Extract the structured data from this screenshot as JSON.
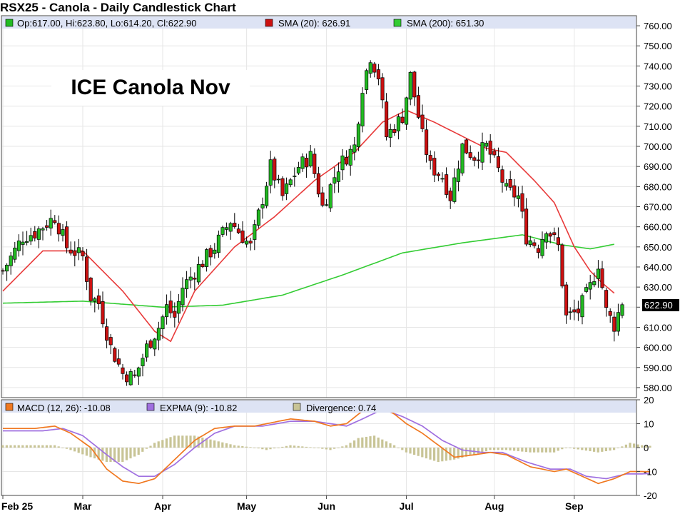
{
  "title": "RSX25 - Canola - Daily Candlestick Chart",
  "annotation": "ICE Canola Nov",
  "legend": {
    "ohlc": "Op:617.00, Hi:623.80, Lo:614.20, Cl:622.90",
    "sma20": "SMA (20): 626.91",
    "sma200": "SMA (200): 651.30",
    "macd": "MACD (12, 26): -10.08",
    "expma": "EXPMA (9): -10.82",
    "divergence": "Divergence: 0.74"
  },
  "last_price_label": "622.90",
  "colors": {
    "up": "#22bb22",
    "down": "#cc1111",
    "sma20": "#e83a3a",
    "sma200": "#33cc33",
    "macd": "#f07820",
    "expma": "#a070e0",
    "divergence": "#c8c496",
    "legend_bg": "#dde3f4"
  },
  "chart_data": [
    {
      "type": "candlestick",
      "title": "RSX25 - Canola - Daily Candlestick Chart",
      "ylim": [
        575,
        765
      ],
      "y_ticks": [
        "760.00",
        "750.00",
        "740.00",
        "730.00",
        "720.00",
        "710.00",
        "700.00",
        "690.00",
        "680.00",
        "670.00",
        "660.00",
        "650.00",
        "640.00",
        "630.00",
        "620.00",
        "610.00",
        "600.00",
        "590.00",
        "580.00"
      ],
      "y_tick_values": [
        760,
        750,
        740,
        730,
        720,
        710,
        700,
        690,
        680,
        670,
        660,
        650,
        640,
        630,
        620,
        610,
        600,
        590,
        580
      ],
      "x_labels": [
        "Feb 25",
        "Mar",
        "Apr",
        "May",
        "Jun",
        "Jul",
        "Aug",
        "Sep"
      ],
      "x_label_index": [
        0,
        20,
        40,
        61,
        81,
        101,
        123,
        143
      ],
      "series": [
        {
          "name": "SMA (20)",
          "anchors": [
            [
              0,
              628
            ],
            [
              10,
              648
            ],
            [
              20,
              648
            ],
            [
              30,
              628
            ],
            [
              38,
              608
            ],
            [
              42,
              603
            ],
            [
              48,
              628
            ],
            [
              58,
              650
            ],
            [
              68,
              665
            ],
            [
              78,
              683
            ],
            [
              88,
              697
            ],
            [
              95,
              712
            ],
            [
              101,
              718
            ],
            [
              108,
              712
            ],
            [
              115,
              705
            ],
            [
              121,
              699
            ],
            [
              126,
              697
            ],
            [
              133,
              683
            ],
            [
              138,
              672
            ],
            [
              143,
              650
            ],
            [
              147,
              638
            ],
            [
              150,
              632
            ],
            [
              153,
              627
            ]
          ]
        },
        {
          "name": "SMA (200)",
          "anchors": [
            [
              0,
              622
            ],
            [
              20,
              623
            ],
            [
              40,
              620
            ],
            [
              55,
              621
            ],
            [
              70,
              626
            ],
            [
              85,
              636
            ],
            [
              100,
              647
            ],
            [
              115,
              652
            ],
            [
              130,
              656
            ],
            [
              140,
              651
            ],
            [
              147,
              649
            ],
            [
              153,
              651.3
            ]
          ]
        }
      ],
      "price_anchors": [
        [
          0,
          638
        ],
        [
          5,
          655
        ],
        [
          8,
          657
        ],
        [
          13,
          665
        ],
        [
          16,
          650
        ],
        [
          20,
          645
        ],
        [
          22,
          625
        ],
        [
          24,
          622
        ],
        [
          27,
          600
        ],
        [
          30,
          587
        ],
        [
          33,
          585
        ],
        [
          36,
          600
        ],
        [
          39,
          610
        ],
        [
          41,
          620
        ],
        [
          43,
          615
        ],
        [
          45,
          630
        ],
        [
          49,
          640
        ],
        [
          53,
          650
        ],
        [
          57,
          663
        ],
        [
          62,
          650
        ],
        [
          67,
          690
        ],
        [
          70,
          675
        ],
        [
          74,
          690
        ],
        [
          77,
          695
        ],
        [
          80,
          670
        ],
        [
          84,
          690
        ],
        [
          88,
          700
        ],
        [
          90,
          730
        ],
        [
          92,
          745
        ],
        [
          94,
          735
        ],
        [
          96,
          705
        ],
        [
          100,
          715
        ],
        [
          102,
          735
        ],
        [
          105,
          705
        ],
        [
          107,
          690
        ],
        [
          110,
          685
        ],
        [
          112,
          675
        ],
        [
          115,
          700
        ],
        [
          118,
          695
        ],
        [
          121,
          700
        ],
        [
          124,
          688
        ],
        [
          126,
          678
        ],
        [
          129,
          675
        ],
        [
          131,
          655
        ],
        [
          134,
          650
        ],
        [
          136,
          660
        ],
        [
          139,
          650
        ],
        [
          141,
          615
        ],
        [
          144,
          618
        ],
        [
          147,
          630
        ],
        [
          149,
          642
        ],
        [
          151,
          618
        ],
        [
          153,
          611
        ],
        [
          155,
          622.9
        ]
      ]
    },
    {
      "type": "line",
      "ylim": [
        -20,
        20
      ],
      "y_ticks": [
        "20",
        "10",
        "0",
        "-10",
        "-20"
      ],
      "y_tick_values": [
        20,
        10,
        0,
        -10,
        -20
      ],
      "series": [
        {
          "name": "MACD (12, 26)",
          "anchors": [
            [
              0,
              8
            ],
            [
              8,
              8
            ],
            [
              13,
              9
            ],
            [
              17,
              6
            ],
            [
              22,
              0
            ],
            [
              26,
              -9
            ],
            [
              30,
              -14
            ],
            [
              34,
              -15
            ],
            [
              38,
              -13
            ],
            [
              43,
              -5
            ],
            [
              48,
              3
            ],
            [
              53,
              8
            ],
            [
              58,
              9
            ],
            [
              63,
              9
            ],
            [
              66,
              10
            ],
            [
              72,
              12
            ],
            [
              78,
              11
            ],
            [
              82,
              9
            ],
            [
              86,
              10
            ],
            [
              89,
              14
            ],
            [
              93,
              19
            ],
            [
              98,
              14
            ],
            [
              101,
              10
            ],
            [
              105,
              6
            ],
            [
              109,
              1
            ],
            [
              113,
              -4
            ],
            [
              118,
              -3
            ],
            [
              122,
              -2
            ],
            [
              126,
              -3
            ],
            [
              132,
              -8
            ],
            [
              138,
              -10
            ],
            [
              141,
              -9
            ],
            [
              145,
              -12
            ],
            [
              149,
              -15
            ],
            [
              153,
              -13
            ],
            [
              157,
              -10
            ],
            [
              160,
              -10
            ],
            [
              162,
              -10.08
            ]
          ]
        },
        {
          "name": "EXPMA (9)",
          "anchors": [
            [
              0,
              7
            ],
            [
              10,
              7
            ],
            [
              15,
              8
            ],
            [
              20,
              5
            ],
            [
              26,
              -3
            ],
            [
              30,
              -8
            ],
            [
              34,
              -12
            ],
            [
              38,
              -12
            ],
            [
              43,
              -7
            ],
            [
              48,
              0
            ],
            [
              53,
              6
            ],
            [
              58,
              9
            ],
            [
              65,
              9
            ],
            [
              72,
              11
            ],
            [
              78,
              11
            ],
            [
              82,
              10
            ],
            [
              86,
              9
            ],
            [
              90,
              12
            ],
            [
              95,
              16
            ],
            [
              100,
              13
            ],
            [
              105,
              9
            ],
            [
              110,
              3
            ],
            [
              115,
              -1
            ],
            [
              120,
              -2
            ],
            [
              125,
              -2
            ],
            [
              131,
              -6
            ],
            [
              137,
              -9
            ],
            [
              142,
              -9
            ],
            [
              146,
              -12
            ],
            [
              151,
              -13
            ],
            [
              156,
              -11
            ],
            [
              160,
              -11
            ],
            [
              162,
              -10.82
            ]
          ]
        },
        {
          "name": "Divergence",
          "anchors": [
            [
              0,
              1
            ],
            [
              8,
              1
            ],
            [
              13,
              1
            ],
            [
              17,
              -1
            ],
            [
              22,
              -4
            ],
            [
              26,
              -6
            ],
            [
              30,
              -6
            ],
            [
              34,
              -3
            ],
            [
              38,
              2
            ],
            [
              43,
              5
            ],
            [
              48,
              5
            ],
            [
              53,
              3
            ],
            [
              58,
              1
            ],
            [
              63,
              0
            ],
            [
              66,
              -1
            ],
            [
              72,
              1
            ],
            [
              78,
              0
            ],
            [
              82,
              -1
            ],
            [
              86,
              1
            ],
            [
              89,
              4
            ],
            [
              93,
              5
            ],
            [
              98,
              1
            ],
            [
              101,
              -2
            ],
            [
              105,
              -4
            ],
            [
              109,
              -6
            ],
            [
              113,
              -5
            ],
            [
              118,
              -3
            ],
            [
              122,
              -1
            ],
            [
              126,
              -1
            ],
            [
              132,
              -2
            ],
            [
              138,
              -2
            ],
            [
              141,
              0
            ],
            [
              145,
              -1
            ],
            [
              149,
              -2
            ],
            [
              153,
              -1
            ],
            [
              157,
              2
            ],
            [
              160,
              1
            ],
            [
              162,
              0.74
            ]
          ]
        }
      ],
      "x_labels": [
        "Feb 25",
        "Mar",
        "Apr",
        "May",
        "Jun",
        "Jul",
        "Aug",
        "Sep"
      ]
    }
  ]
}
